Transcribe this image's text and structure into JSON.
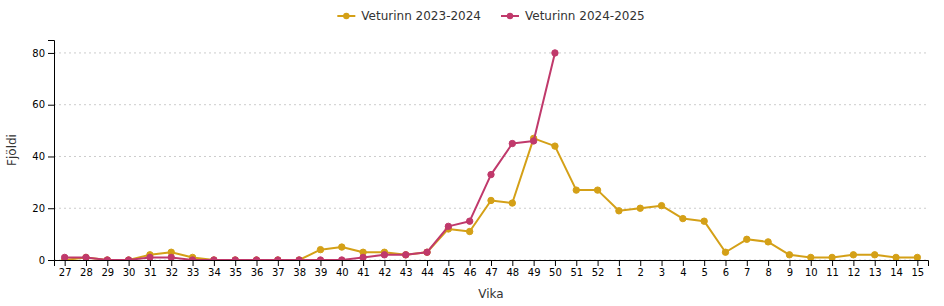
{
  "chart_data": {
    "type": "line",
    "xlabel": "Vika",
    "ylabel": "Fjöldi",
    "categories": [
      "27",
      "28",
      "29",
      "30",
      "31",
      "32",
      "33",
      "34",
      "35",
      "36",
      "37",
      "38",
      "39",
      "40",
      "41",
      "42",
      "43",
      "44",
      "45",
      "46",
      "47",
      "48",
      "49",
      "50",
      "51",
      "52",
      "1",
      "2",
      "3",
      "4",
      "5",
      "6",
      "7",
      "8",
      "9",
      "10",
      "11",
      "12",
      "13",
      "14",
      "15"
    ],
    "series": [
      {
        "name": "Veturinn 2023-2024",
        "color": "#D4A017",
        "marker": "circle",
        "values": [
          0,
          1,
          0,
          0,
          2,
          3,
          1,
          0,
          0,
          0,
          0,
          0,
          4,
          5,
          3,
          3,
          2,
          3,
          12,
          11,
          23,
          22,
          47,
          44,
          27,
          27,
          19,
          20,
          21,
          16,
          15,
          3,
          8,
          7,
          2,
          1,
          1,
          2,
          2,
          1,
          1
        ]
      },
      {
        "name": "Veturinn 2024-2025",
        "color": "#C0396B",
        "marker": "circle",
        "values": [
          1,
          1,
          0,
          0,
          1,
          1,
          0,
          0,
          0,
          0,
          0,
          0,
          0,
          0,
          1,
          2,
          2,
          3,
          13,
          15,
          33,
          45,
          46,
          80,
          null,
          null,
          null,
          null,
          null,
          null,
          null,
          null,
          null,
          null,
          null,
          null,
          null,
          null,
          null,
          null,
          null
        ]
      }
    ],
    "ylim": [
      0,
      85
    ],
    "yticks": [
      0,
      20,
      40,
      60,
      80
    ],
    "grid": true,
    "legend": "top"
  }
}
